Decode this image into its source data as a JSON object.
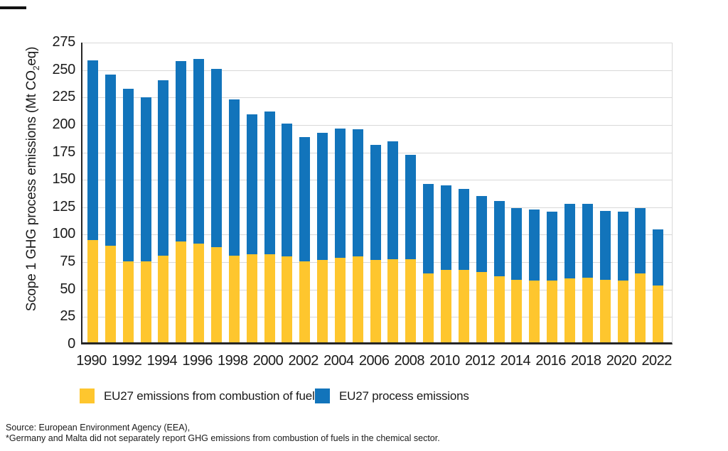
{
  "figure": {
    "y_axis_title": {
      "pre": "Scope 1 GHG process emissions (Mt CO",
      "sub": "2",
      "post": "eq)"
    }
  },
  "chart_data": {
    "type": "bar",
    "stacked": true,
    "categories": [
      "1990",
      "1991",
      "1992",
      "1993",
      "1994",
      "1995",
      "1996",
      "1997",
      "1998",
      "1999",
      "2000",
      "2001",
      "2002",
      "2003",
      "2004",
      "2005",
      "2006",
      "2007",
      "2008",
      "2009",
      "2010",
      "2011",
      "2012",
      "2013",
      "2014",
      "2015",
      "2016",
      "2017",
      "2018",
      "2019",
      "2020",
      "2021",
      "2022"
    ],
    "series": [
      {
        "name": "EU27 emissions from combustion of fuels",
        "color": "#FEC62E",
        "values": [
          93,
          88,
          74,
          74,
          79,
          92,
          90,
          87,
          79,
          80,
          80,
          78,
          74,
          75,
          77,
          78,
          75,
          76,
          76,
          63,
          66,
          66,
          64,
          60,
          57,
          56,
          56,
          58,
          59,
          57,
          56,
          63,
          52
        ]
      },
      {
        "name": "EU27 process emissions",
        "color": "#1274BB",
        "values": [
          164,
          156,
          157,
          149,
          160,
          164,
          168,
          162,
          142,
          128,
          130,
          121,
          113,
          116,
          118,
          116,
          105,
          107,
          95,
          81,
          77,
          74,
          69,
          69,
          65,
          65,
          63,
          68,
          67,
          63,
          63,
          59,
          51
        ]
      }
    ],
    "ylabel": "Scope 1 GHG process emissions (Mt CO2eq)",
    "xlabel": "",
    "ylim": [
      0,
      275
    ],
    "y_tick_step": 25,
    "x_tick_step": 2,
    "grid": true,
    "legend_position": "bottom",
    "style": {
      "grid_color": "#d8d8d8",
      "axis_color": "#262626",
      "text_color": "#1a1a1a"
    }
  },
  "footnotes": {
    "source_line": "Source: European Environment Agency (EEA),",
    "note_line": "*Germany and Malta did not separately report GHG emissions from combustion of fuels in the chemical sector."
  }
}
